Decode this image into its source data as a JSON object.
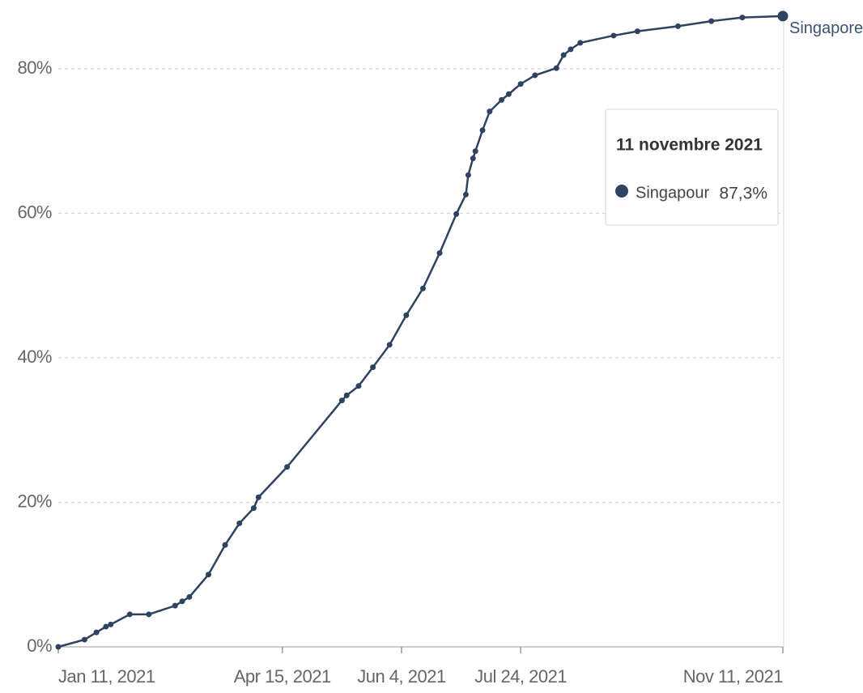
{
  "chart_data": {
    "type": "line",
    "x": [
      "2021-01-11",
      "2021-01-22",
      "2021-01-27",
      "2021-01-31",
      "2021-02-02",
      "2021-02-10",
      "2021-02-18",
      "2021-03-01",
      "2021-03-04",
      "2021-03-07",
      "2021-03-15",
      "2021-03-22",
      "2021-03-28",
      "2021-04-03",
      "2021-04-05",
      "2021-04-17",
      "2021-05-10",
      "2021-05-12",
      "2021-05-17",
      "2021-05-23",
      "2021-05-30",
      "2021-06-06",
      "2021-06-13",
      "2021-06-20",
      "2021-06-27",
      "2021-07-01",
      "2021-07-02",
      "2021-07-04",
      "2021-07-05",
      "2021-07-08",
      "2021-07-11",
      "2021-07-16",
      "2021-07-19",
      "2021-07-24",
      "2021-07-30",
      "2021-08-08",
      "2021-08-11",
      "2021-08-14",
      "2021-08-18",
      "2021-09-01",
      "2021-09-11",
      "2021-09-28",
      "2021-10-12",
      "2021-10-25",
      "2021-11-11"
    ],
    "series": [
      {
        "name": "Singapore",
        "color": "#2f4360",
        "values": [
          0,
          1.0,
          2.0,
          2.8,
          3.1,
          4.5,
          4.5,
          5.7,
          6.3,
          6.9,
          10.0,
          14.1,
          17.1,
          19.2,
          20.7,
          24.9,
          34.1,
          34.8,
          36.1,
          38.7,
          41.8,
          45.9,
          49.6,
          54.5,
          59.9,
          62.6,
          65.3,
          67.6,
          68.6,
          71.5,
          74.1,
          75.7,
          76.5,
          77.9,
          79.1,
          80.1,
          81.9,
          82.7,
          83.6,
          84.6,
          85.2,
          85.9,
          86.6,
          87.1,
          87.3
        ]
      }
    ],
    "xlim": [
      "2021-01-11",
      "2021-11-11"
    ],
    "xticks": [
      {
        "value": "2021-01-11",
        "label": "Jan 11, 2021"
      },
      {
        "value": "2021-04-15",
        "label": "Apr 15, 2021"
      },
      {
        "value": "2021-06-04",
        "label": "Jun 4, 2021"
      },
      {
        "value": "2021-07-24",
        "label": "Jul 24, 2021"
      },
      {
        "value": "2021-11-11",
        "label": "Nov 11, 2021"
      }
    ],
    "ylim": [
      0,
      80
    ],
    "yticks": [
      {
        "value": 0,
        "label": "0%"
      },
      {
        "value": 20,
        "label": "20%"
      },
      {
        "value": 40,
        "label": "40%"
      },
      {
        "value": 60,
        "label": "60%"
      },
      {
        "value": 80,
        "label": "80%"
      }
    ],
    "grid": true,
    "tooltip": {
      "title": "11 novembre 2021",
      "name": "Singapour",
      "value": 87.3,
      "label": "87,3%"
    }
  }
}
